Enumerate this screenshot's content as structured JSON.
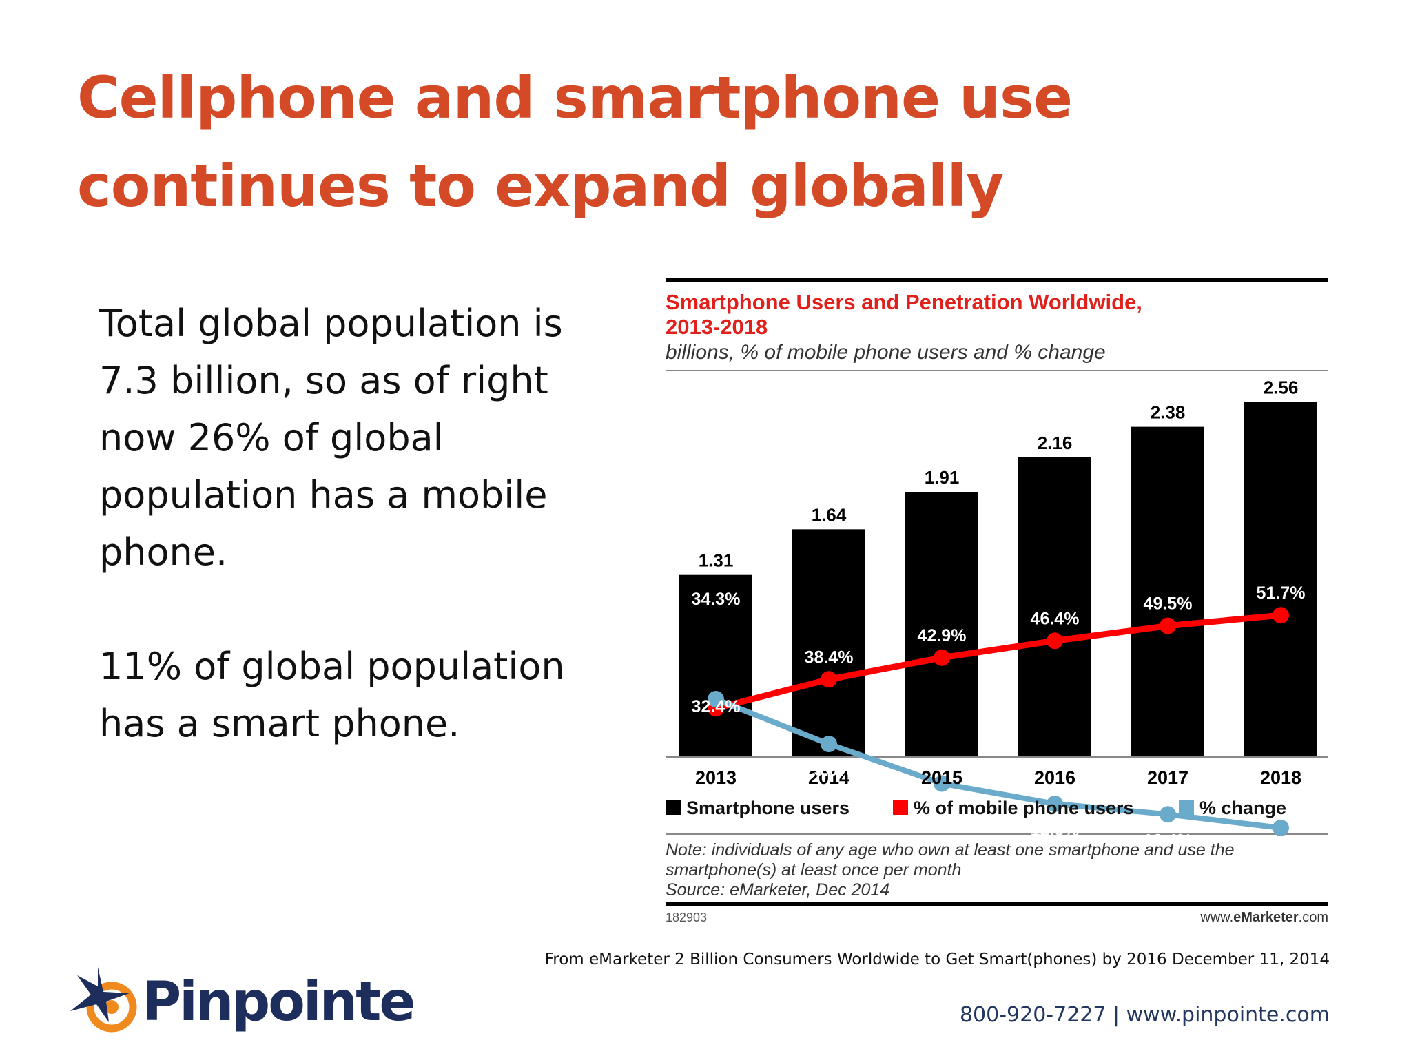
{
  "slide": {
    "title_line1": "Cellphone and smartphone use",
    "title_line2": "continues to expand globally",
    "paragraph1": "Total global population is 7.3 billion, so as of right now 26% of global population has a mobile phone.",
    "paragraph2": "11% of global population has a smart  phone.",
    "source_line": "From eMarketer 2 Billion Consumers Worldwide to Get Smart(phones) by 2016 December 11, 2014",
    "contact": "800-920-7227 | www.pinpointe.com",
    "logo_text": "Pinpointe",
    "accent_color": "#d54a26",
    "brand_color": "#1d2d5c",
    "logo_icon": "star-target-icon"
  },
  "chart_data": {
    "type": "bar",
    "title": "Smartphone Users and Penetration Worldwide,",
    "title_line2": "2013-2018",
    "subtitle": "billions, % of mobile phone users and % change",
    "categories": [
      "2013",
      "2014",
      "2015",
      "2016",
      "2017",
      "2018"
    ],
    "series": [
      {
        "name": "Smartphone users",
        "type": "bar",
        "color": "#000000",
        "values": [
          1.31,
          1.64,
          1.91,
          2.16,
          2.38,
          2.56
        ],
        "labels": [
          "1.31",
          "1.64",
          "1.91",
          "2.16",
          "2.38",
          "2.56"
        ]
      },
      {
        "name": "% of mobile phone users",
        "type": "line",
        "color": "#ff0000",
        "values": [
          32.4,
          38.4,
          42.9,
          46.4,
          49.5,
          51.7
        ],
        "labels": [
          "32.4%",
          "38.4%",
          "42.9%",
          "46.4%",
          "49.5%",
          "51.7%"
        ]
      },
      {
        "name": "% change",
        "type": "line",
        "color": "#6aabcb",
        "values": [
          34.3,
          25.0,
          16.8,
          12.6,
          10.4,
          7.6
        ],
        "labels": [
          "34.3%",
          "25.0%",
          "16.8%",
          "12.6%",
          "10.4%",
          "7.6%"
        ]
      }
    ],
    "note_line1": "Note: individuals of any age who own at least one smartphone and use the",
    "note_line2": "smartphone(s) at least once per month",
    "source": "Source: eMarketer, Dec 2014",
    "chart_id": "182903",
    "brand_prefix": "www.",
    "brand_name": "eMarketer",
    "brand_suffix": ".com",
    "legend_position": "bottom",
    "grid": false,
    "title_color": "#e0201b"
  }
}
